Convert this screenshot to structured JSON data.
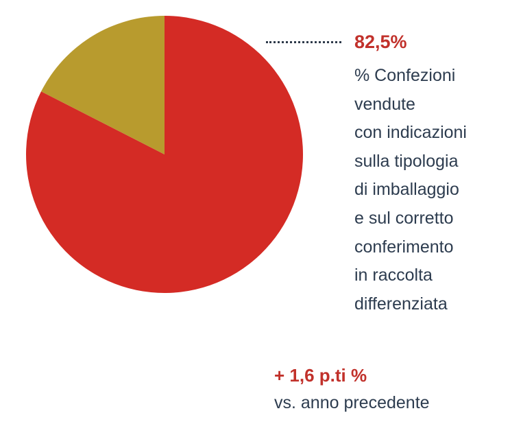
{
  "chart_data": {
    "type": "pie",
    "slices": [
      {
        "value": 82.5,
        "color": "#d42b25"
      },
      {
        "value": 17.5,
        "color": "#b89b2e"
      }
    ],
    "start": "top",
    "direction": "clockwise",
    "data_label": "82,5%"
  },
  "annotation": {
    "lines": [
      "% Confezioni",
      "vendute",
      "con indicazioni",
      "sulla tipologia",
      "di imballaggio",
      "e sul corretto",
      "conferimento",
      "in raccolta",
      "differenziata"
    ]
  },
  "comparison": {
    "delta": "+ 1,6 p.ti %",
    "text": "vs. anno precedente"
  }
}
